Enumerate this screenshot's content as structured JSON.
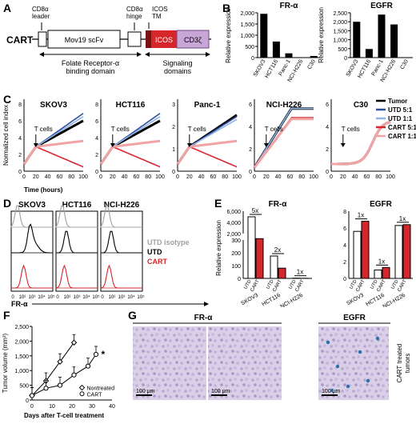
{
  "panel_labels": {
    "a": "A",
    "b": "B",
    "c": "C",
    "d": "D",
    "e": "E",
    "f": "F",
    "g": "G"
  },
  "panelA": {
    "construct": "CART",
    "cd8a_leader": "CD8α\nleader",
    "scfv": "Mov19 scFv",
    "cd8a_hinge": "CD8α\nhinge",
    "icos_tm": "ICOS\nTM",
    "icos": "ICOS",
    "cd3z": "CD3ζ",
    "binding": "Folate Receptor-α\nbinding domain",
    "signaling": "Signaling\ndomains",
    "colors": {
      "icos": "#d7262b",
      "cd3z": "#c9a6d8"
    }
  },
  "panelB": {
    "ylabel": "Relative expression",
    "fra": {
      "title": "FR-α",
      "cells": [
        "SKOV3",
        "HCT116",
        "Panc-1",
        "NCI-H226",
        "C30"
      ],
      "values": [
        2150,
        790,
        210,
        0,
        80
      ],
      "ticks": [
        "2,000",
        "1,500",
        "1,000",
        "500",
        "0"
      ]
    },
    "egfr": {
      "title": "EGFR",
      "cells": [
        "SKOV3",
        "HCT116",
        "Panc-1",
        "NCI-H226",
        "C30"
      ],
      "values": [
        2000,
        480,
        2400,
        1850,
        0
      ],
      "ticks": [
        "2,500",
        "2,000",
        "1,500",
        "1,000",
        "500",
        "0"
      ]
    }
  },
  "panelC": {
    "ylabel": "Normalized cell index",
    "xlabel": "Time (hours)",
    "tcell_label": "T cells",
    "xticks": [
      "0",
      "20",
      "40",
      "60",
      "80",
      "100"
    ],
    "plots": [
      {
        "title": "SKOV3",
        "yticks": [
          "0",
          "2",
          "4",
          "6",
          "8"
        ]
      },
      {
        "title": "HCT116",
        "yticks": [
          "0",
          "2",
          "4",
          "6",
          "8"
        ]
      },
      {
        "title": "Panc-1",
        "yticks": [
          "0",
          "1",
          "2",
          "3"
        ]
      },
      {
        "title": "NCI-H226",
        "yticks": [
          "0",
          "2",
          "4",
          "6"
        ]
      },
      {
        "title": "C30",
        "yticks": [
          "0",
          "2",
          "4",
          "6"
        ]
      }
    ],
    "legend": [
      {
        "label": "Tumor",
        "color": "#000000"
      },
      {
        "label": "UTD 5:1",
        "color": "#2d4fa0"
      },
      {
        "label": "UTD 1:1",
        "color": "#8fb3e3"
      },
      {
        "label": "CART 5:1",
        "color": "#d7262b"
      },
      {
        "label": "CART 1:1",
        "color": "#f2a3a6"
      }
    ]
  },
  "panelD": {
    "plots": [
      "SKOV3",
      "HCT116",
      "NCI-H226"
    ],
    "xlabel": "FR-α",
    "ticks": [
      "0",
      "10²",
      "10³",
      "10⁴",
      "10⁵"
    ],
    "legend": [
      {
        "label": "UTD isotype",
        "color": "#a0a0a0"
      },
      {
        "label": "UTD",
        "color": "#000000"
      },
      {
        "label": "CART",
        "color": "#d7262b"
      }
    ]
  },
  "panelE": {
    "ylabel": "Relative expression",
    "fra": {
      "title": "FR-α",
      "yticks_top": [
        "6,000",
        "4,000",
        "2,000"
      ],
      "yticks_bottom": [
        "300",
        "200",
        "100",
        "0"
      ],
      "groups": [
        {
          "cell": "SKOV3",
          "utd": 5000,
          "cart": 1100,
          "fold": "5x"
        },
        {
          "cell": "HCT116",
          "utd": 175,
          "cart": 80,
          "fold": "2x"
        },
        {
          "cell": "NCI-H226",
          "utd": 2,
          "cart": 1,
          "fold": "1x"
        }
      ],
      "bar_labels": [
        "UTD",
        "CART"
      ]
    },
    "egfr": {
      "title": "EGFR",
      "yticks": [
        "8",
        "6",
        "4",
        "2",
        "0"
      ],
      "groups": [
        {
          "cell": "SKOV3",
          "utd": 5.6,
          "cart": 6.8,
          "fold": "1x"
        },
        {
          "cell": "HCT116",
          "utd": 1.0,
          "cart": 1.3,
          "fold": "1x"
        },
        {
          "cell": "NCI-H226",
          "utd": 6.3,
          "cart": 6.4,
          "fold": "1x"
        }
      ],
      "bar_labels": [
        "UTD",
        "CART"
      ]
    }
  },
  "panelF": {
    "ylabel": "Tumor volume (mm³)",
    "xlabel": "Days after T-cell treatment",
    "yticks": [
      "0",
      "500",
      "1,000",
      "1,500",
      "2,000",
      "2,500"
    ],
    "xticks": [
      "0",
      "10",
      "20",
      "30",
      "40"
    ],
    "star": "*",
    "legend": [
      "Nontreated",
      "CART"
    ]
  },
  "panelG": {
    "headers": [
      "FR-α",
      "EGFR"
    ],
    "scale": "100 μm",
    "side_label": "CART treated\ntumors"
  },
  "chart_data": [
    {
      "type": "bar",
      "title": "FR-α",
      "ylabel": "Relative expression",
      "categories": [
        "SKOV3",
        "HCT116",
        "Panc-1",
        "NCI-H226",
        "C30"
      ],
      "values": [
        2150,
        790,
        210,
        0,
        80
      ],
      "ylim": [
        0,
        2200
      ]
    },
    {
      "type": "bar",
      "title": "EGFR",
      "ylabel": "Relative expression",
      "categories": [
        "SKOV3",
        "HCT116",
        "Panc-1",
        "NCI-H226",
        "C30"
      ],
      "values": [
        2000,
        480,
        2400,
        1850,
        0
      ],
      "ylim": [
        0,
        2500
      ]
    },
    {
      "type": "line",
      "xlabel": "Days after T-cell treatment",
      "ylabel": "Tumor volume (mm³)",
      "x": [
        0,
        7,
        14,
        21
      ],
      "series": [
        {
          "name": "Nontreated",
          "values": [
            150,
            650,
            1300,
            1950
          ]
        }
      ],
      "ylim": [
        0,
        2500
      ],
      "xlim": [
        0,
        40
      ]
    },
    {
      "type": "line",
      "xlabel": "Days after T-cell treatment",
      "ylabel": "Tumor volume (mm³)",
      "x": [
        0,
        7,
        14,
        21,
        28,
        32
      ],
      "series": [
        {
          "name": "CART",
          "values": [
            150,
            400,
            500,
            850,
            1150,
            1550
          ]
        }
      ],
      "ylim": [
        0,
        2500
      ],
      "xlim": [
        0,
        40
      ]
    }
  ]
}
